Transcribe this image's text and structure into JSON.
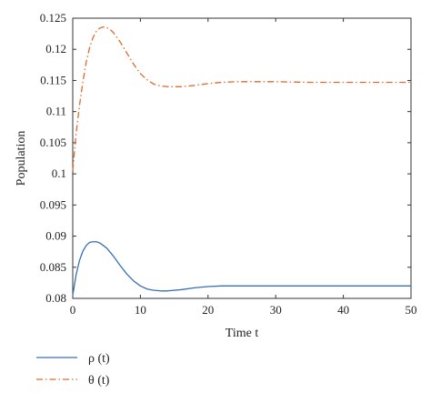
{
  "chart_data": {
    "type": "line",
    "xlabel": "Time t",
    "ylabel": "Population",
    "xlim": [
      0,
      50
    ],
    "ylim": [
      0.08,
      0.125
    ],
    "xticks": [
      "0",
      "10",
      "20",
      "30",
      "40",
      "50"
    ],
    "yticks": [
      "0.08",
      "0.085",
      "0.09",
      "0.095",
      "0.1",
      "0.105",
      "0.11",
      "0.115",
      "0.12",
      "0.125"
    ],
    "grid": false,
    "legend_position": "bottom-left",
    "series": [
      {
        "name": "ρ (t)",
        "color": "#3a6fb0",
        "style": "solid",
        "x": [
          0,
          0.5,
          1,
          1.5,
          2,
          2.5,
          3,
          3.5,
          4,
          5,
          6,
          7,
          8,
          9,
          10,
          11,
          12,
          13,
          14,
          16,
          18,
          20,
          22,
          25,
          30,
          35,
          40,
          45,
          50
        ],
        "y": [
          0.0805,
          0.0838,
          0.0861,
          0.0876,
          0.0885,
          0.089,
          0.0891,
          0.0891,
          0.0889,
          0.0881,
          0.0868,
          0.0853,
          0.0839,
          0.0828,
          0.082,
          0.0815,
          0.0813,
          0.0812,
          0.0812,
          0.0814,
          0.0817,
          0.0819,
          0.082,
          0.082,
          0.082,
          0.082,
          0.082,
          0.082,
          0.082
        ]
      },
      {
        "name": "θ (t)",
        "color": "#e06b2b",
        "style": "dashdot",
        "x": [
          0,
          0.5,
          1,
          1.5,
          2,
          2.5,
          3,
          3.5,
          4,
          4.5,
          5,
          5.5,
          6,
          7,
          8,
          9,
          10,
          11,
          12,
          13,
          14,
          15,
          16,
          18,
          20,
          22,
          24,
          26,
          28,
          30,
          35,
          40,
          45,
          50
        ],
        "y": [
          0.1005,
          0.1065,
          0.111,
          0.1148,
          0.118,
          0.1203,
          0.1219,
          0.1229,
          0.1234,
          0.1236,
          0.1235,
          0.1232,
          0.1227,
          0.1212,
          0.1194,
          0.1176,
          0.1161,
          0.1151,
          0.1144,
          0.1141,
          0.114,
          0.114,
          0.114,
          0.1142,
          0.1145,
          0.1147,
          0.1148,
          0.1148,
          0.1148,
          0.1148,
          0.1147,
          0.1147,
          0.1147,
          0.1147
        ]
      }
    ]
  }
}
